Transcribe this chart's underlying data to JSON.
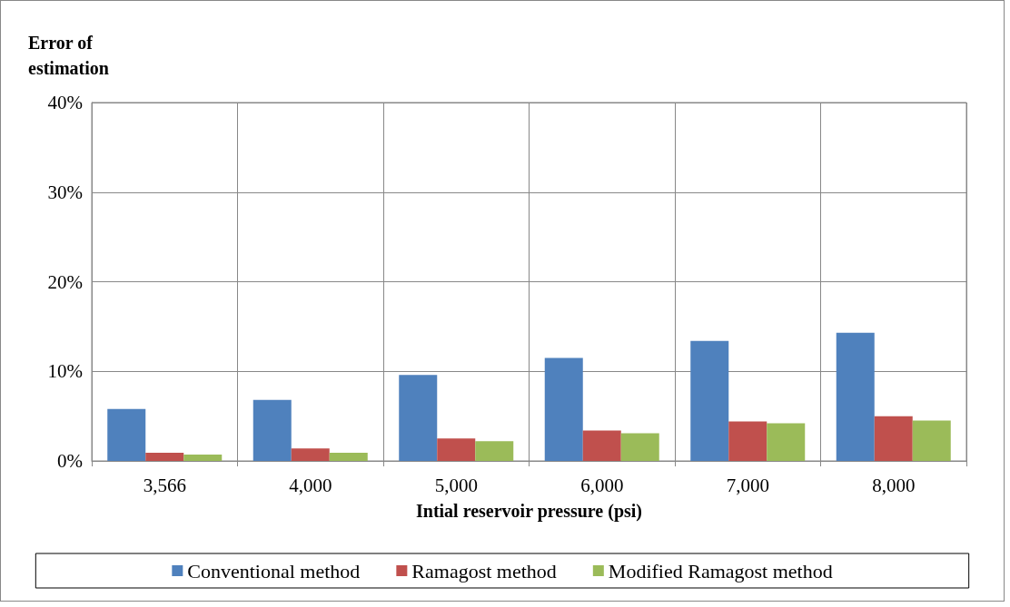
{
  "chart_data": {
    "type": "bar",
    "ylabel": "Error of\nestimation",
    "xlabel": "Intial reservoir pressure (psi)",
    "categories": [
      "3,566",
      "4,000",
      "5,000",
      "6,000",
      "7,000",
      "8,000"
    ],
    "series": [
      {
        "name": "Conventional method",
        "color": "#4f81bd",
        "values": [
          5.8,
          6.8,
          9.6,
          11.5,
          13.4,
          14.3
        ]
      },
      {
        "name": "Ramagost method",
        "color": "#c0504d",
        "values": [
          0.9,
          1.4,
          2.5,
          3.4,
          4.4,
          5.0
        ]
      },
      {
        "name": "Modified Ramagost method",
        "color": "#9bbb59",
        "values": [
          0.7,
          0.9,
          2.2,
          3.1,
          4.2,
          4.5
        ]
      }
    ],
    "ylim": [
      0,
      40
    ],
    "yticks": [
      {
        "value": 0,
        "label": "0%"
      },
      {
        "value": 10,
        "label": "10%"
      },
      {
        "value": 20,
        "label": "20%"
      },
      {
        "value": 30,
        "label": "30%"
      },
      {
        "value": 40,
        "label": "40%"
      }
    ],
    "grid": true,
    "legend": "bottom"
  }
}
